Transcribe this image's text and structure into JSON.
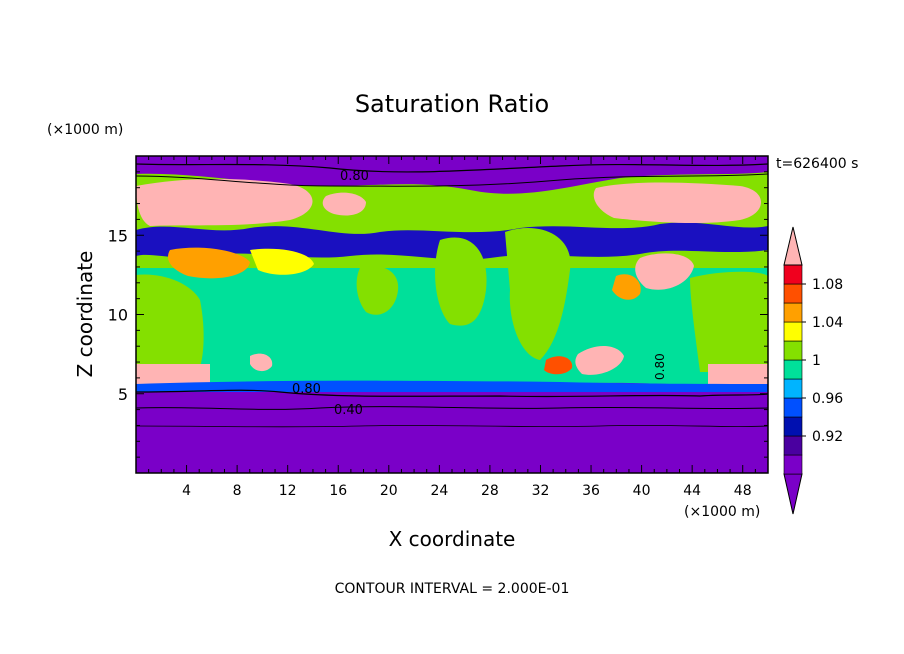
{
  "chart_data": {
    "type": "heatmap",
    "title": "Saturation Ratio",
    "xlabel": "X coordinate",
    "ylabel": "Z coordinate",
    "x_unit": "(×1000 m)",
    "y_unit": "(×1000 m)",
    "xlim": [
      0,
      50
    ],
    "ylim": [
      0,
      20
    ],
    "x_ticks": [
      "4",
      "8",
      "12",
      "16",
      "20",
      "24",
      "28",
      "32",
      "36",
      "40",
      "44",
      "48"
    ],
    "y_ticks": [
      "5",
      "10",
      "15"
    ],
    "time_label": "t=626400 s",
    "footer": "CONTOUR INTERVAL = 2.000E-01",
    "contour_labels": [
      "0.80",
      "0.80",
      "0.40",
      "0.80"
    ],
    "colorbar": {
      "labels": [
        "0.92",
        "0.96",
        "1",
        "1.04",
        "1.08"
      ],
      "colors": [
        "#7a00c8",
        "#4a00a0",
        "#0010b0",
        "#0050ff",
        "#00b4ff",
        "#00e09a",
        "#84e000",
        "#ffff00",
        "#ffa000",
        "#ff5000",
        "#f0001e",
        "#ffb4b4"
      ]
    },
    "colors": {
      "dry": "#7a00c8",
      "near_saturated": "#00e09a",
      "saturated": "#84e000",
      "supersaturated": "#ffb4b4"
    }
  }
}
